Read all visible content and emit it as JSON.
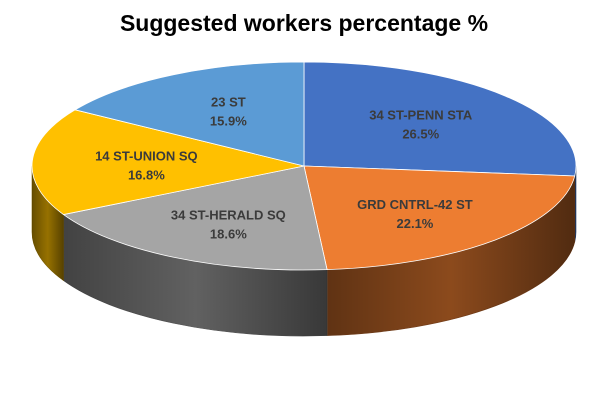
{
  "chart_data": {
    "type": "pie",
    "title": "Suggested workers percentage %",
    "style": "3d",
    "categories": [
      "34 ST-PENN STA",
      "GRD CNTRL-42 ST",
      "34 ST-HERALD SQ",
      "14 ST-UNION SQ",
      "23 ST"
    ],
    "values": [
      26.5,
      22.1,
      18.6,
      16.8,
      15.9
    ],
    "value_labels": [
      "26.5%",
      "22.1%",
      "18.6%",
      "16.8%",
      "15.9%"
    ],
    "colors": [
      "#4472C4",
      "#ED7D31",
      "#A5A5A5",
      "#FFC000",
      "#5B9BD5"
    ]
  }
}
